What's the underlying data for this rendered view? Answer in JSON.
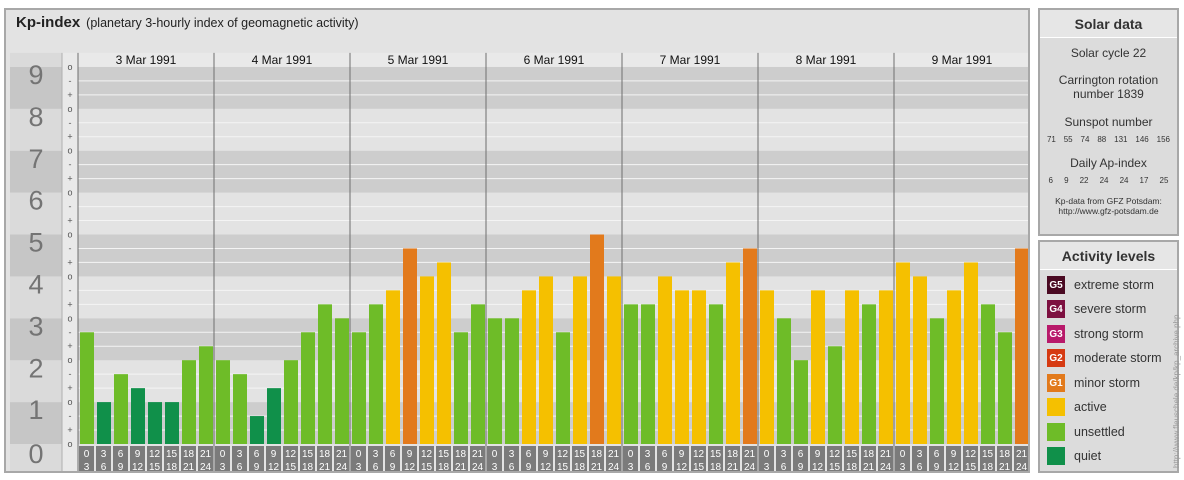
{
  "header": {
    "title": "Kp-index",
    "subtitle": "(planetary 3-hourly index of geomagnetic activity)"
  },
  "chart_data": {
    "type": "bar",
    "ylim": [
      0,
      9
    ],
    "y_tick_labels": [
      "0",
      "1",
      "2",
      "3",
      "4",
      "5",
      "6",
      "7",
      "8",
      "9"
    ],
    "y_subtick_labels": [
      "o",
      "+",
      "-",
      "o"
    ],
    "days": [
      "3 Mar 1991",
      "4 Mar 1991",
      "5 Mar 1991",
      "6 Mar 1991",
      "7 Mar 1991",
      "8 Mar 1991",
      "9 Mar 1991"
    ],
    "interval_labels": [
      [
        "0",
        "3"
      ],
      [
        "3",
        "6"
      ],
      [
        "6",
        "9"
      ],
      [
        "9",
        "12"
      ],
      [
        "12",
        "15"
      ],
      [
        "15",
        "18"
      ],
      [
        "18",
        "21"
      ],
      [
        "21",
        "24"
      ]
    ],
    "values": [
      2.667,
      1.0,
      1.667,
      1.333,
      1.0,
      1.0,
      2.0,
      2.333,
      2.0,
      1.667,
      0.667,
      1.333,
      2.0,
      2.667,
      3.333,
      3.0,
      2.667,
      3.333,
      3.667,
      4.667,
      4.0,
      4.333,
      2.667,
      3.333,
      3.0,
      3.0,
      3.667,
      4.0,
      2.667,
      4.0,
      5.0,
      4.0,
      3.333,
      3.333,
      4.0,
      3.667,
      3.667,
      3.333,
      4.333,
      4.667,
      3.667,
      3.0,
      2.0,
      3.667,
      2.333,
      3.667,
      3.333,
      3.667,
      4.333,
      4.0,
      3.0,
      3.667,
      4.333,
      3.333,
      2.667,
      4.667
    ]
  },
  "solar": {
    "title": "Solar data",
    "cycle": "Solar cycle 22",
    "carrington_line1": "Carrington rotation",
    "carrington_line2": "number 1839",
    "sunspot_title": "Sunspot number",
    "sunspot_values": [
      "71",
      "55",
      "74",
      "88",
      "131",
      "146",
      "156"
    ],
    "ap_title": "Daily Ap-index",
    "ap_values": [
      "6",
      "9",
      "22",
      "24",
      "24",
      "17",
      "25"
    ],
    "source_line1": "Kp-data from GFZ Potsdam:",
    "source_line2": "http://www.gfz-potsdam.de"
  },
  "activity": {
    "title": "Activity levels",
    "levels": [
      {
        "code": "G5",
        "label": "extreme storm",
        "color": "#4a0a22"
      },
      {
        "code": "G4",
        "label": "severe storm",
        "color": "#7d1040"
      },
      {
        "code": "G3",
        "label": "strong storm",
        "color": "#b8196a"
      },
      {
        "code": "G2",
        "label": "moderate storm",
        "color": "#d63a12"
      },
      {
        "code": "G1",
        "label": "minor storm",
        "color": "#e27a1c"
      },
      {
        "code": "",
        "label": "active",
        "color": "#f5c000"
      },
      {
        "code": "",
        "label": "unsettled",
        "color": "#6ebc28"
      },
      {
        "code": "",
        "label": "quiet",
        "color": "#10904a"
      }
    ]
  },
  "colors": {
    "quiet": "#10904a",
    "unsettled": "#6ebc28",
    "active": "#f5c000",
    "minor_storm": "#e27a1c",
    "band_dark": "#cdcdcd",
    "band_light": "#e3e3e3",
    "axis_bg": "#bdbdbd",
    "time_cell": "#7b7b7b"
  },
  "credit": "http://www.fleuschele.de/kp/kp_archive.php"
}
